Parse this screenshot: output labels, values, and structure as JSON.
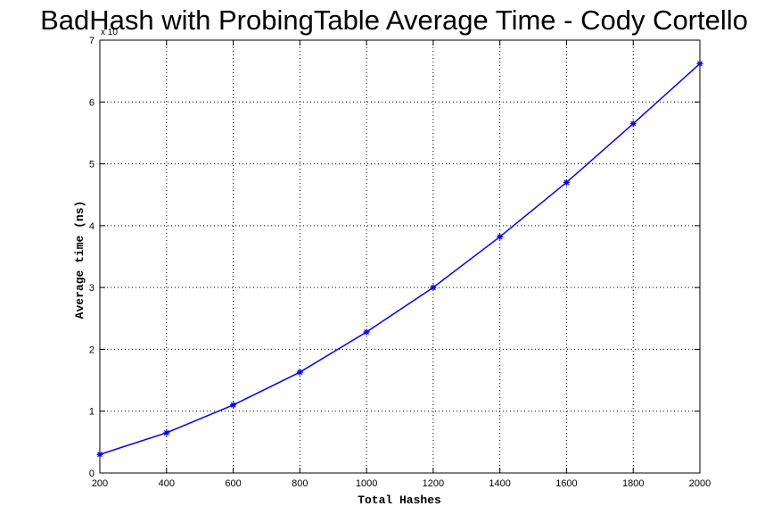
{
  "chart_data": {
    "type": "line",
    "title": "BadHash with ProbingTable Average Time - Cody Cortello",
    "xlabel": "Total Hashes",
    "ylabel": "Average time (ns)",
    "y_multiplier_label": "x 10",
    "x": [
      200,
      400,
      600,
      800,
      1000,
      1200,
      1400,
      1600,
      1800,
      2000
    ],
    "series": [
      {
        "values": [
          0.3,
          0.65,
          1.1,
          1.63,
          2.28,
          3.0,
          3.82,
          4.7,
          5.65,
          6.62
        ],
        "color": "#0000ff",
        "marker": "asterisk"
      }
    ],
    "xlim": [
      200,
      2000
    ],
    "ylim": [
      0,
      7
    ],
    "xticks": [
      "200",
      "400",
      "600",
      "800",
      "1000",
      "1200",
      "1400",
      "1600",
      "1800",
      "2000"
    ],
    "yticks": [
      "0",
      "1",
      "2",
      "3",
      "4",
      "5",
      "6",
      "7"
    ],
    "grid": true,
    "legend": false
  }
}
